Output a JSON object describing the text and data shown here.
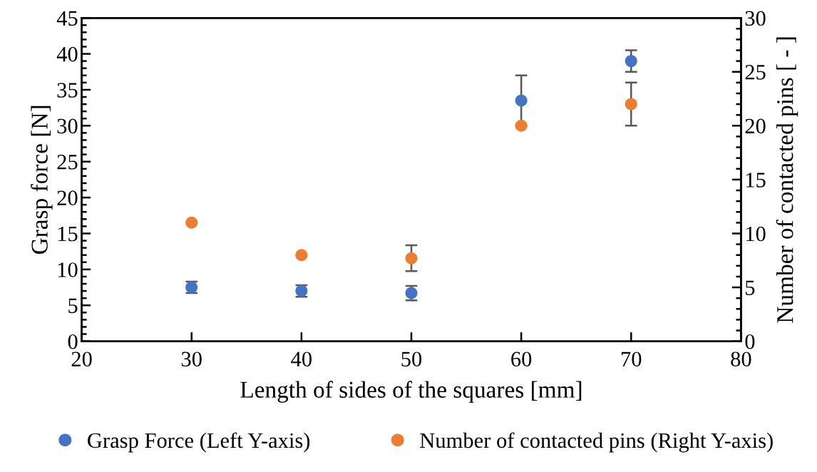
{
  "chart_data": {
    "type": "scatter",
    "xlabel": "Length of sides of the squares [mm]",
    "ylabel": "Grasp force [N]",
    "y2label": "Number of contacted pins [ - ]",
    "x": [
      30,
      40,
      50,
      60,
      70
    ],
    "series": [
      {
        "name": "Grasp Force (Left Y-axis)",
        "color": "#4472c4",
        "values": [
          7.5,
          7.0,
          6.7,
          33.5,
          39.0
        ],
        "errors": [
          0.8,
          0.8,
          1.0,
          3.5,
          1.5
        ]
      },
      {
        "name": "Number of contacted pins (Right Y-axis)",
        "color": "#ed7d31",
        "axis": "y2",
        "values": [
          11.0,
          8.0,
          7.7,
          20.0,
          22.0
        ],
        "errors": [
          null,
          null,
          1.2,
          null,
          2.0
        ]
      }
    ],
    "xlim": [
      20,
      80
    ],
    "xticks": [
      20,
      30,
      40,
      50,
      60,
      70,
      80
    ],
    "ylim": [
      0,
      45
    ],
    "yticks": [
      0,
      5,
      10,
      15,
      20,
      25,
      30,
      35,
      40,
      45
    ],
    "y2lim": [
      0,
      30
    ],
    "y2ticks": [
      0,
      5,
      10,
      15,
      20,
      25,
      30
    ],
    "marker": "circle",
    "grid": false,
    "legend": "bottom"
  }
}
